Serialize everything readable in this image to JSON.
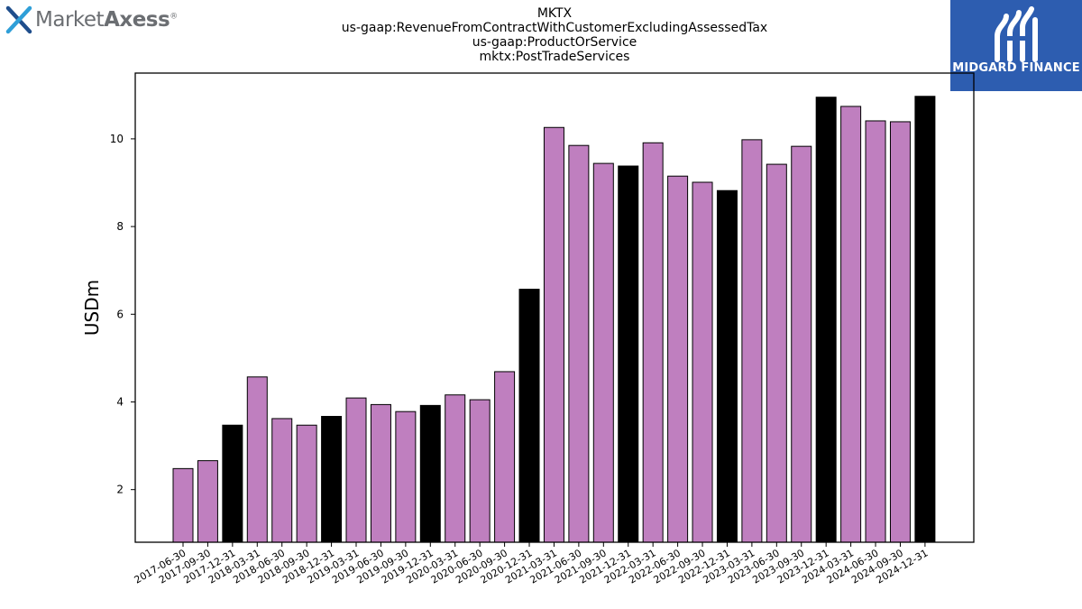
{
  "brand": {
    "name_light": "Market",
    "name_bold": "Axess",
    "registered": "®"
  },
  "corner_logo": {
    "text": "MIDGARD FINANCE"
  },
  "colors": {
    "quarter_bar": "#bf7fbf",
    "year_end_bar": "#000000",
    "logo_bg": "#2d5db0"
  },
  "chart_data": {
    "type": "bar",
    "title_lines": [
      "MKTX",
      "us-gaap:RevenueFromContractWithCustomerExcludingAssessedTax",
      "us-gaap:ProductOrService",
      "mktx:PostTradeServices"
    ],
    "xlabel": "",
    "ylabel": "USDm",
    "ylim": [
      0.8,
      11.5
    ],
    "yticks": [
      2,
      4,
      6,
      8,
      10
    ],
    "grid": false,
    "categories": [
      "2017-06-30",
      "2017-09-30",
      "2017-12-31",
      "2018-03-31",
      "2018-06-30",
      "2018-09-30",
      "2018-12-31",
      "2019-03-31",
      "2019-06-30",
      "2019-09-30",
      "2019-12-31",
      "2020-03-31",
      "2020-06-30",
      "2020-09-30",
      "2020-12-31",
      "2021-03-31",
      "2021-06-30",
      "2021-09-30",
      "2021-12-31",
      "2022-03-31",
      "2022-06-30",
      "2022-09-30",
      "2022-12-31",
      "2023-03-31",
      "2023-06-30",
      "2023-09-30",
      "2023-12-31",
      "2024-03-31",
      "2024-06-30",
      "2024-09-30",
      "2024-12-31"
    ],
    "values": [
      2.48,
      2.66,
      3.47,
      4.57,
      3.62,
      3.47,
      3.67,
      4.09,
      3.94,
      3.78,
      3.92,
      4.16,
      4.05,
      4.69,
      6.57,
      10.26,
      9.85,
      9.44,
      9.38,
      9.91,
      9.15,
      9.01,
      8.82,
      9.98,
      9.42,
      9.83,
      10.95,
      10.74,
      10.41,
      10.39,
      10.97
    ],
    "year_end": [
      false,
      false,
      true,
      false,
      false,
      false,
      true,
      false,
      false,
      false,
      true,
      false,
      false,
      false,
      true,
      false,
      false,
      false,
      true,
      false,
      false,
      false,
      true,
      false,
      false,
      false,
      true,
      false,
      false,
      false,
      true
    ]
  }
}
